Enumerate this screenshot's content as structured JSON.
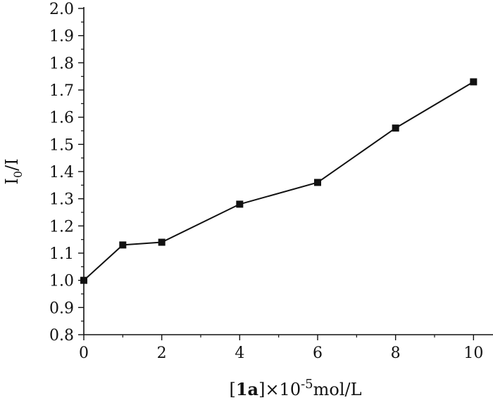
{
  "chart_data": {
    "type": "line",
    "title": "",
    "xlabel": {
      "prefix": "[",
      "bold": "1a",
      "mid": "]×10",
      "exponent": "-5",
      "suffix": "mol/L"
    },
    "ylabel": {
      "main": "I",
      "sub": "0",
      "suffix": "/I"
    },
    "xlim": [
      0,
      10.5
    ],
    "ylim": [
      0.8,
      2.0
    ],
    "xticks": [
      0,
      2,
      4,
      6,
      8,
      10
    ],
    "xtick_labels": [
      "0",
      "2",
      "4",
      "6",
      "8",
      "10"
    ],
    "yticks": [
      0.8,
      0.9,
      1.0,
      1.1,
      1.2,
      1.3,
      1.4,
      1.5,
      1.6,
      1.7,
      1.8,
      1.9,
      2.0
    ],
    "ytick_labels": [
      "0.8",
      "0.9",
      "1.0",
      "1.1",
      "1.2",
      "1.3",
      "1.4",
      "1.5",
      "1.6",
      "1.7",
      "1.8",
      "1.9",
      "2.0"
    ],
    "grid": false,
    "legend": "none",
    "series": [
      {
        "marker": "square",
        "color": "#111111",
        "x": [
          0,
          1,
          2,
          4,
          6,
          8,
          10
        ],
        "y": [
          1.0,
          1.13,
          1.14,
          1.28,
          1.36,
          1.56,
          1.73
        ]
      }
    ]
  }
}
